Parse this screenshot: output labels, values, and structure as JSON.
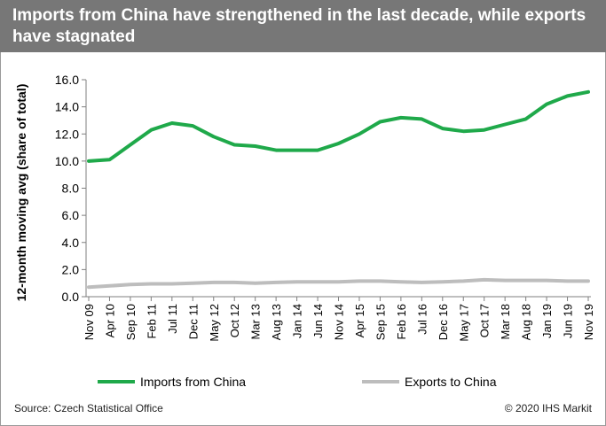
{
  "header": {
    "title": "Imports from China have strengthened in the last decade, while exports have stagnated"
  },
  "footer": {
    "source": "Source: Czech Statistical Office",
    "copyright": "© 2020 IHS Markit"
  },
  "colors": {
    "header_bg": "#777777",
    "imports": "#1fa94a",
    "exports": "#bdbdbd"
  },
  "chart_data": {
    "type": "line",
    "ylabel": "12-month moving avg (share of total)",
    "xlabel": "",
    "ylim": [
      0,
      16
    ],
    "yticks": [
      "0.0",
      "2.0",
      "4.0",
      "6.0",
      "8.0",
      "10.0",
      "12.0",
      "14.0",
      "16.0"
    ],
    "x_tick_labels": [
      "Nov 09",
      "Apr 10",
      "Sep 10",
      "Feb 11",
      "Jul 11",
      "Dec 11",
      "May 12",
      "Oct 12",
      "Mar 13",
      "Aug 13",
      "Jan 14",
      "Jun 14",
      "Nov 14",
      "Apr 15",
      "Sep 15",
      "Feb 16",
      "Jul 16",
      "Dec 16",
      "May 17",
      "Oct 17",
      "Mar 18",
      "Aug 18",
      "Jan 19",
      "Jun 19",
      "Nov 19"
    ],
    "legend_position": "bottom",
    "grid": false,
    "series": [
      {
        "name": "Imports from China",
        "points": [
          [
            "Nov 09",
            10.0
          ],
          [
            "Apr 10",
            10.1
          ],
          [
            "Sep 10",
            11.2
          ],
          [
            "Feb 11",
            12.3
          ],
          [
            "Jul 11",
            12.8
          ],
          [
            "Dec 11",
            12.6
          ],
          [
            "May 12",
            11.8
          ],
          [
            "Oct 12",
            11.2
          ],
          [
            "Mar 13",
            11.1
          ],
          [
            "Aug 13",
            10.8
          ],
          [
            "Jan 14",
            10.8
          ],
          [
            "Jun 14",
            10.8
          ],
          [
            "Nov 14",
            11.3
          ],
          [
            "Apr 15",
            12.0
          ],
          [
            "Sep 15",
            12.9
          ],
          [
            "Feb 16",
            13.2
          ],
          [
            "Jul 16",
            13.1
          ],
          [
            "Dec 16",
            12.4
          ],
          [
            "May 17",
            12.2
          ],
          [
            "Oct 17",
            12.3
          ],
          [
            "Mar 18",
            12.7
          ],
          [
            "Aug 18",
            13.1
          ],
          [
            "Jan 19",
            14.2
          ],
          [
            "Jun 19",
            14.8
          ],
          [
            "Nov 19",
            15.1
          ]
        ]
      },
      {
        "name": "Exports to China",
        "points": [
          [
            "Nov 09",
            0.7
          ],
          [
            "Apr 10",
            0.8
          ],
          [
            "Sep 10",
            0.9
          ],
          [
            "Feb 11",
            0.95
          ],
          [
            "Jul 11",
            0.95
          ],
          [
            "Dec 11",
            1.0
          ],
          [
            "May 12",
            1.05
          ],
          [
            "Oct 12",
            1.05
          ],
          [
            "Mar 13",
            1.0
          ],
          [
            "Aug 13",
            1.05
          ],
          [
            "Jan 14",
            1.1
          ],
          [
            "Jun 14",
            1.1
          ],
          [
            "Nov 14",
            1.1
          ],
          [
            "Apr 15",
            1.15
          ],
          [
            "Sep 15",
            1.15
          ],
          [
            "Feb 16",
            1.1
          ],
          [
            "Jul 16",
            1.05
          ],
          [
            "Dec 16",
            1.1
          ],
          [
            "May 17",
            1.15
          ],
          [
            "Oct 17",
            1.25
          ],
          [
            "Mar 18",
            1.2
          ],
          [
            "Aug 18",
            1.2
          ],
          [
            "Jan 19",
            1.2
          ],
          [
            "Jun 19",
            1.15
          ],
          [
            "Nov 19",
            1.15
          ]
        ]
      }
    ]
  }
}
